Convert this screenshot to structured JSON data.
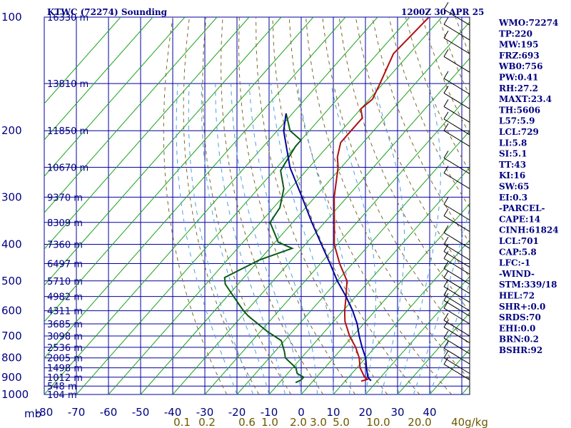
{
  "header": {
    "station": "KTWC (72274) Sounding",
    "time": "1200Z 30 APR 25"
  },
  "indices": [
    "WMO:72274",
    "TP:220",
    "MW:195",
    "FRZ:693",
    "WB0:756",
    "PW:0.41",
    "RH:27.2",
    "MAXT:23.4",
    "TH:5606",
    "L57:5.9",
    "LCL:729",
    "LI:5.8",
    "SI:5.1",
    "TT:43",
    "KI:16",
    "SW:65",
    "EI:0.3",
    "-PARCEL-",
    "CAPE:14",
    "CINH:61824",
    "LCL:701",
    "CAP:5.8",
    "LFC:-1",
    "-WIND-",
    "STM:339/18",
    "HEL:72",
    "SHR+:0.0",
    "SRDS:70",
    "EHI:0.0",
    "BRN:0.2",
    "BSHR:92"
  ],
  "chart_data": {
    "type": "line",
    "title": "KTWC (72274) Sounding",
    "xlabel": "",
    "ylabel": "mb",
    "pressure_ticks": [
      100,
      200,
      300,
      400,
      500,
      600,
      700,
      800,
      900,
      1000
    ],
    "pressure_unit_label": "mb",
    "temperature_ticks": [
      -80,
      -70,
      -60,
      -50,
      -40,
      -30,
      -20,
      -10,
      0,
      10,
      20,
      30,
      40
    ],
    "height_labels": [
      {
        "p": 100,
        "label": "16330 m"
      },
      {
        "p": 150,
        "label": "13810 m"
      },
      {
        "p": 200,
        "label": "11850 m"
      },
      {
        "p": 250,
        "label": "10670 m"
      },
      {
        "p": 300,
        "label": "9370 m"
      },
      {
        "p": 350,
        "label": "8309 m"
      },
      {
        "p": 400,
        "label": "7360 m"
      },
      {
        "p": 450,
        "label": "6497 m"
      },
      {
        "p": 500,
        "label": "5710 m"
      },
      {
        "p": 550,
        "label": "4982 m"
      },
      {
        "p": 600,
        "label": "4311 m"
      },
      {
        "p": 650,
        "label": "3685 m"
      },
      {
        "p": 700,
        "label": "3098 m"
      },
      {
        "p": 750,
        "label": "2536 m"
      },
      {
        "p": 800,
        "label": "2005 m"
      },
      {
        "p": 850,
        "label": "1498 m"
      },
      {
        "p": 900,
        "label": "1012 m"
      },
      {
        "p": 950,
        "label": "548 m"
      },
      {
        "p": 1000,
        "label": "104 m"
      }
    ],
    "mixing_ratio_labels": [
      "0.1",
      "0.2",
      "0.6",
      "1.0",
      "2.0",
      "3.0",
      "5.0",
      "10.0",
      "20.0",
      "40g/kg"
    ],
    "series": [
      {
        "name": "temperature",
        "color": "#b01010",
        "points": [
          [
            100,
            -64
          ],
          [
            125,
            -65
          ],
          [
            150,
            -61
          ],
          [
            165,
            -59
          ],
          [
            175,
            -60
          ],
          [
            185,
            -57
          ],
          [
            200,
            -57
          ],
          [
            215,
            -57
          ],
          [
            235,
            -54
          ],
          [
            250,
            -51
          ],
          [
            300,
            -44
          ],
          [
            350,
            -37
          ],
          [
            400,
            -31
          ],
          [
            450,
            -24
          ],
          [
            500,
            -17
          ],
          [
            550,
            -13
          ],
          [
            600,
            -9.5
          ],
          [
            640,
            -6.5
          ],
          [
            700,
            -1
          ],
          [
            750,
            4
          ],
          [
            800,
            8
          ],
          [
            850,
            11
          ],
          [
            900,
            15
          ],
          [
            912,
            16.5
          ],
          [
            922,
            15
          ]
        ]
      },
      {
        "name": "dewpoint",
        "color": "#0b5a16",
        "points": [
          [
            180,
            -82
          ],
          [
            200,
            -76
          ],
          [
            212,
            -70
          ],
          [
            220,
            -70
          ],
          [
            255,
            -68
          ],
          [
            285,
            -62
          ],
          [
            320,
            -58
          ],
          [
            350,
            -57
          ],
          [
            395,
            -49
          ],
          [
            410,
            -43
          ],
          [
            440,
            -50
          ],
          [
            490,
            -56
          ],
          [
            510,
            -54
          ],
          [
            550,
            -48
          ],
          [
            600,
            -41
          ],
          [
            620,
            -38
          ],
          [
            680,
            -28
          ],
          [
            720,
            -21
          ],
          [
            770,
            -17
          ],
          [
            800,
            -15
          ],
          [
            850,
            -9
          ],
          [
            880,
            -7
          ],
          [
            900,
            -4
          ],
          [
            915,
            -4
          ],
          [
            930,
            -5
          ]
        ]
      },
      {
        "name": "parcel",
        "color": "#0000a0",
        "points": [
          [
            180,
            -82
          ],
          [
            200,
            -78
          ],
          [
            250,
            -66
          ],
          [
            300,
            -54
          ],
          [
            350,
            -44
          ],
          [
            400,
            -35
          ],
          [
            450,
            -27
          ],
          [
            500,
            -20
          ],
          [
            550,
            -13
          ],
          [
            600,
            -7
          ],
          [
            650,
            -2
          ],
          [
            700,
            2
          ],
          [
            750,
            6
          ],
          [
            800,
            10
          ],
          [
            850,
            13
          ],
          [
            900,
            16
          ],
          [
            920,
            18
          ]
        ]
      }
    ],
    "wind_barbs": [
      {
        "p": 105
      },
      {
        "p": 115
      },
      {
        "p": 125
      },
      {
        "p": 140
      },
      {
        "p": 160
      },
      {
        "p": 175
      },
      {
        "p": 190
      },
      {
        "p": 205
      },
      {
        "p": 220
      },
      {
        "p": 260
      },
      {
        "p": 285
      },
      {
        "p": 345
      },
      {
        "p": 370
      },
      {
        "p": 410
      },
      {
        "p": 440
      },
      {
        "p": 460
      },
      {
        "p": 480
      },
      {
        "p": 510
      },
      {
        "p": 540
      },
      {
        "p": 570
      },
      {
        "p": 600
      },
      {
        "p": 620
      },
      {
        "p": 650
      },
      {
        "p": 700
      },
      {
        "p": 730
      },
      {
        "p": 780
      },
      {
        "p": 830
      },
      {
        "p": 880
      },
      {
        "p": 915
      }
    ],
    "grid": true
  }
}
